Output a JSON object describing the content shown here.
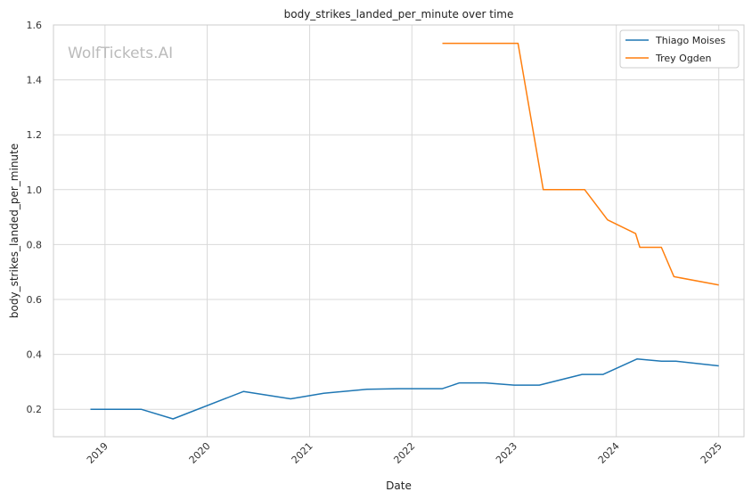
{
  "chart_data": {
    "type": "line",
    "title": "body_strikes_landed_per_minute over time",
    "xlabel": "Date",
    "ylabel": "body_strikes_landed_per_minute",
    "watermark": "WolfTickets.AI",
    "xlim": [
      "2018-07-01",
      "2025-04-01"
    ],
    "ylim": [
      0.1,
      1.6
    ],
    "x_ticks": [
      "2019",
      "2020",
      "2021",
      "2022",
      "2023",
      "2024",
      "2025"
    ],
    "y_ticks": [
      "0.2",
      "0.4",
      "0.6",
      "0.8",
      "1.0",
      "1.2",
      "1.4",
      "1.6"
    ],
    "grid": true,
    "legend_position": "top-right",
    "series": [
      {
        "name": "Thiago Moises",
        "color": "#1f77b4",
        "points": [
          [
            "2018-11-10",
            0.2
          ],
          [
            "2019-05-10",
            0.2
          ],
          [
            "2019-09-01",
            0.165
          ],
          [
            "2020-05-10",
            0.265
          ],
          [
            "2020-10-25",
            0.238
          ],
          [
            "2021-02-20",
            0.258
          ],
          [
            "2021-07-25",
            0.273
          ],
          [
            "2021-11-15",
            0.275
          ],
          [
            "2022-04-20",
            0.275
          ],
          [
            "2022-06-20",
            0.296
          ],
          [
            "2022-09-20",
            0.296
          ],
          [
            "2023-01-01",
            0.288
          ],
          [
            "2023-04-01",
            0.288
          ],
          [
            "2023-09-01",
            0.327
          ],
          [
            "2023-11-15",
            0.327
          ],
          [
            "2024-03-15",
            0.383
          ],
          [
            "2024-06-10",
            0.375
          ],
          [
            "2024-08-01",
            0.375
          ],
          [
            "2025-01-01",
            0.358
          ]
        ]
      },
      {
        "name": "Trey Ogden",
        "color": "#ff7f0e",
        "points": [
          [
            "2022-04-20",
            1.533
          ],
          [
            "2023-01-15",
            1.533
          ],
          [
            "2023-04-15",
            1.0
          ],
          [
            "2023-09-10",
            1.0
          ],
          [
            "2023-12-01",
            0.89
          ],
          [
            "2024-03-10",
            0.84
          ],
          [
            "2024-03-25",
            0.79
          ],
          [
            "2024-06-10",
            0.79
          ],
          [
            "2024-07-25",
            0.683
          ],
          [
            "2025-01-01",
            0.653
          ]
        ]
      }
    ]
  }
}
